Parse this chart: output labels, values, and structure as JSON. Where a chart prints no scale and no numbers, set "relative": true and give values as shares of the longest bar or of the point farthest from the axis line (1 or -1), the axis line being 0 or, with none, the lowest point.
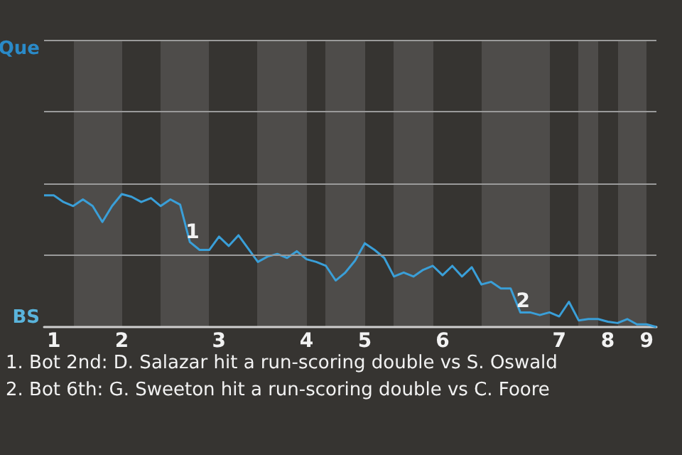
{
  "chart_data": {
    "type": "line",
    "relative": true,
    "categories": [
      null,
      "1",
      null,
      null,
      null,
      null,
      null,
      null,
      "2",
      null,
      null,
      null,
      null,
      null,
      null,
      null,
      null,
      null,
      "3",
      null,
      null,
      null,
      null,
      null,
      null,
      null,
      null,
      "4",
      null,
      null,
      null,
      null,
      null,
      "5",
      null,
      null,
      null,
      null,
      null,
      null,
      null,
      "6",
      null,
      null,
      null,
      null,
      null,
      null,
      null,
      null,
      null,
      null,
      null,
      "7",
      null,
      null,
      null,
      null,
      "8",
      null,
      null,
      null,
      "9",
      null
    ],
    "series": [
      {
        "color": "#3a9fd8",
        "values": [
          0.99,
          0.99,
          0.94,
          0.91,
          0.96,
          0.91,
          0.79,
          0.91,
          1,
          0.98,
          0.94,
          0.97,
          0.91,
          0.96,
          0.92,
          0.64,
          0.58,
          0.58,
          0.68,
          0.61,
          0.69,
          0.59,
          0.49,
          0.53,
          0.55,
          0.52,
          0.57,
          0.51,
          0.49,
          0.46,
          0.35,
          0.41,
          0.5,
          0.63,
          0.58,
          0.52,
          0.38,
          0.41,
          0.38,
          0.43,
          0.46,
          0.39,
          0.46,
          0.38,
          0.45,
          0.32,
          0.34,
          0.29,
          0.29,
          0.11,
          0.11,
          0.09,
          0.11,
          0.08,
          0.19,
          0.05,
          0.06,
          0.06,
          0.04,
          0.03,
          0.06,
          0.02,
          0.02,
          0
        ]
      }
    ],
    "marker": "none",
    "ref_lines": [
      {
        "axis": "y",
        "value": 0.54,
        "color": "#9a9a9a"
      },
      {
        "axis": "y",
        "value": 1.08,
        "color": "#9a9a9a"
      },
      {
        "axis": "y",
        "value": 1.62,
        "color": "#9a9a9a"
      },
      {
        "axis": "y",
        "value": 2.16,
        "color": "#9a9a9a"
      }
    ],
    "annotations": [
      "Que",
      "BS",
      {
        "text": "1",
        "y": 0.71
      },
      {
        "text": "2",
        "y": 0.19
      },
      "1. Bot 2nd: D. Salazar hit a run-scoring double vs S. Oswald",
      "2. Bot 6th: G. Sweeton hit a run-scoring double vs C. Foore"
    ]
  }
}
